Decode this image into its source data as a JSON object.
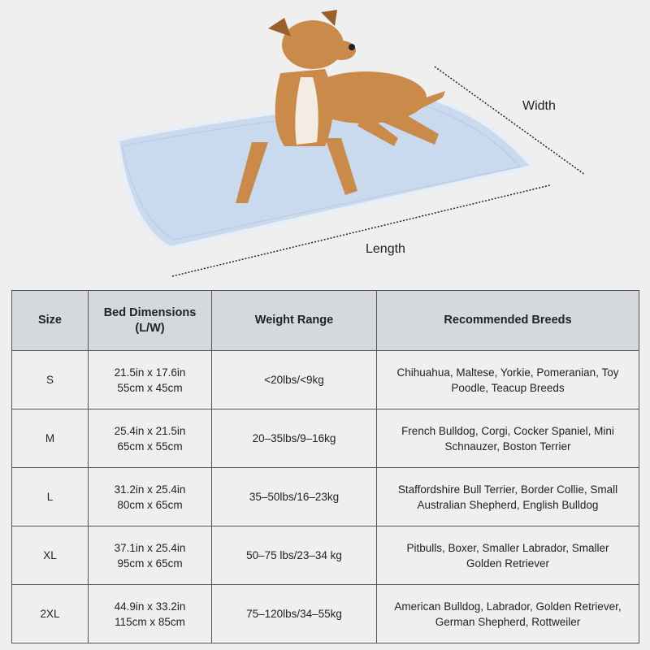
{
  "illustration": {
    "subject": "dog lying on a light blue cooling mat",
    "width_label": "Width",
    "length_label": "Length",
    "colors": {
      "mat": "#c9d9ee",
      "dog": "#c98a4a",
      "background": "#efefef"
    }
  },
  "table": {
    "headers": [
      "Size",
      "Bed Dimensions\n(L/W)",
      "Weight Range",
      "Recommended Breeds"
    ],
    "header_lines": [
      [
        "Size"
      ],
      [
        "Bed Dimensions",
        "(L/W)"
      ],
      [
        "Weight Range"
      ],
      [
        "Recommended Breeds"
      ]
    ],
    "rows": [
      {
        "size": "S",
        "dim_in": "21.5in x 17.6in",
        "dim_cm": "55cm x 45cm",
        "weight": "<20lbs/<9kg",
        "breeds1": "Chihuahua, Maltese, Yorkie, Pomeranian, Toy",
        "breeds2": "Poodle, Teacup Breeds"
      },
      {
        "size": "M",
        "dim_in": "25.4in x 21.5in",
        "dim_cm": "65cm x 55cm",
        "weight": "20–35lbs/9–16kg",
        "breeds1": "French Bulldog, Corgi, Cocker Spaniel, Mini",
        "breeds2": "Schnauzer, Boston Terrier"
      },
      {
        "size": "L",
        "dim_in": "31.2in x 25.4in",
        "dim_cm": "80cm x 65cm",
        "weight": "35–50lbs/16–23kg",
        "breeds1": "Staffordshire Bull Terrier, Border Collie, Small",
        "breeds2": "Australian Shepherd, English Bulldog"
      },
      {
        "size": "XL",
        "dim_in": "37.1in x 25.4in",
        "dim_cm": "95cm x 65cm",
        "weight": "50–75 lbs/23–34 kg",
        "breeds1": "Pitbulls, Boxer, Smaller Labrador, Smaller",
        "breeds2": "Golden Retriever"
      },
      {
        "size": "2XL",
        "dim_in": "44.9in x 33.2in",
        "dim_cm": "115cm x 85cm",
        "weight": "75–120lbs/34–55kg",
        "breeds1": "American Bulldog, Labrador, Golden Retriever,",
        "breeds2": "German Shepherd, Rottweiler"
      }
    ]
  }
}
